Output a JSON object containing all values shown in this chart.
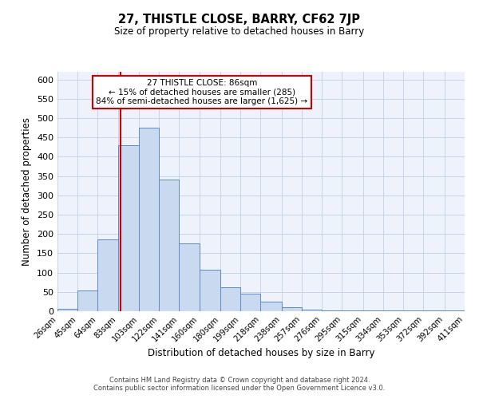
{
  "title": "27, THISTLE CLOSE, BARRY, CF62 7JP",
  "subtitle": "Size of property relative to detached houses in Barry",
  "xlabel": "Distribution of detached houses by size in Barry",
  "ylabel": "Number of detached properties",
  "footer_line1": "Contains HM Land Registry data © Crown copyright and database right 2024.",
  "footer_line2": "Contains public sector information licensed under the Open Government Licence v3.0.",
  "bin_labels": [
    "26sqm",
    "45sqm",
    "64sqm",
    "83sqm",
    "103sqm",
    "122sqm",
    "141sqm",
    "160sqm",
    "180sqm",
    "199sqm",
    "218sqm",
    "238sqm",
    "257sqm",
    "276sqm",
    "295sqm",
    "315sqm",
    "334sqm",
    "353sqm",
    "372sqm",
    "392sqm",
    "411sqm"
  ],
  "bin_edges": [
    26,
    45,
    64,
    83,
    103,
    122,
    141,
    160,
    180,
    199,
    218,
    238,
    257,
    276,
    295,
    315,
    334,
    353,
    372,
    392,
    411
  ],
  "bar_heights": [
    7,
    53,
    187,
    430,
    475,
    340,
    175,
    108,
    62,
    46,
    25,
    10,
    5,
    3,
    2,
    2,
    2,
    2,
    2,
    2
  ],
  "bar_facecolor": "#c9d9f0",
  "bar_edgecolor": "#5b8cc8",
  "grid_color": "#c8d4e8",
  "bg_color": "#edf2fb",
  "property_line_x": 86,
  "property_line_color": "#cc0000",
  "annotation_line1": "27 THISTLE CLOSE: 86sqm",
  "annotation_line2": "← 15% of detached houses are smaller (285)",
  "annotation_line3": "84% of semi-detached houses are larger (1,625) →",
  "annotation_box_edgecolor": "#cc0000",
  "ylim": [
    0,
    620
  ],
  "yticks": [
    0,
    50,
    100,
    150,
    200,
    250,
    300,
    350,
    400,
    450,
    500,
    550,
    600
  ]
}
